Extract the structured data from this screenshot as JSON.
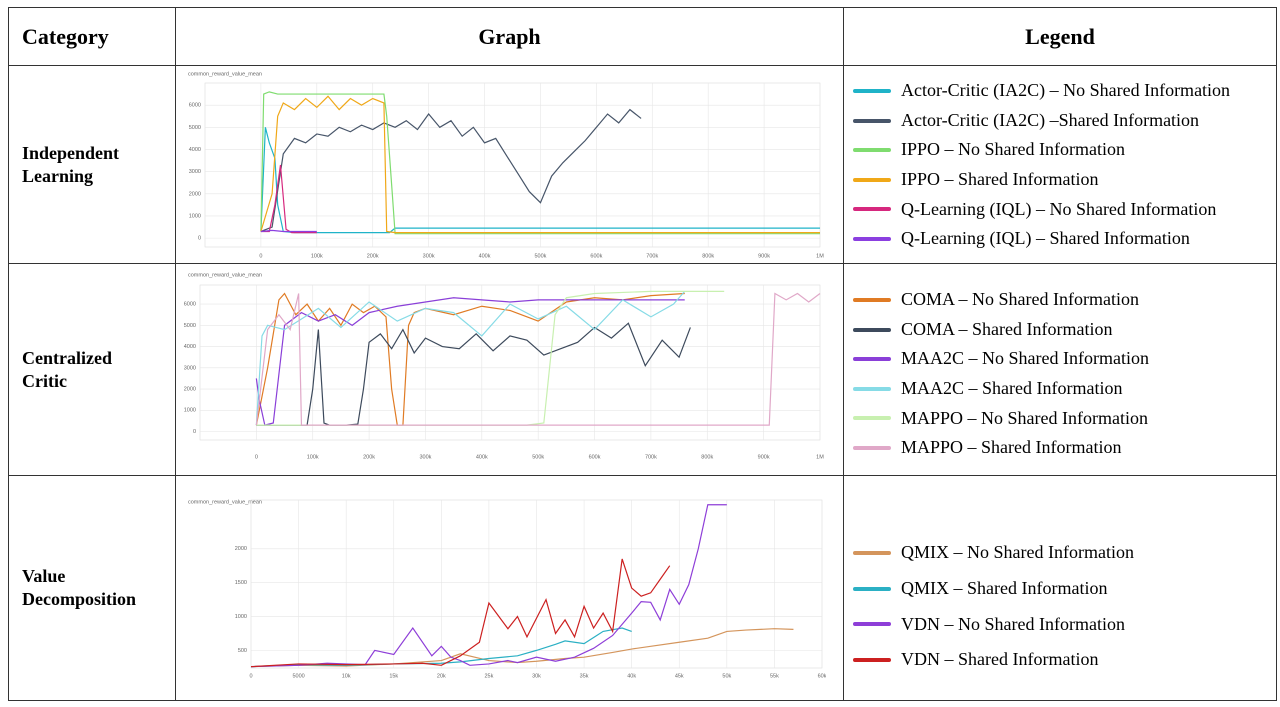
{
  "header": {
    "category": "Category",
    "graph": "Graph",
    "legend": "Legend"
  },
  "rows": [
    {
      "category": "Independent Learning",
      "chart_data": {
        "type": "line",
        "title": "common_reward_value_mean",
        "grid": true,
        "xlim": [
          -100000,
          1000000
        ],
        "ylim": [
          -400,
          7000
        ],
        "xticks": [
          0,
          {
            "value": 100000,
            "label": "100k"
          },
          {
            "value": 200000,
            "label": "200k"
          },
          {
            "value": 300000,
            "label": "300k"
          },
          {
            "value": 400000,
            "label": "400k"
          },
          {
            "value": 500000,
            "label": "500k"
          },
          {
            "value": 600000,
            "label": "600k"
          },
          {
            "value": 700000,
            "label": "700k"
          },
          {
            "value": 800000,
            "label": "800k"
          },
          {
            "value": 900000,
            "label": "900k"
          },
          {
            "value": 1000000,
            "label": "1M"
          }
        ],
        "yticks": [
          0,
          1000,
          2000,
          3000,
          4000,
          5000,
          6000
        ],
        "series": [
          {
            "name": "Actor-Critic (IA2C) – No Shared Information",
            "color": "#1fb3c8",
            "x": [
              0,
              8000,
              15000,
              25000,
              30000,
              40000,
              60000,
              230000,
              240000,
              1000000
            ],
            "values": [
              300,
              5000,
              4300,
              3600,
              1500,
              300,
              250,
              250,
              450,
              450
            ]
          },
          {
            "name": "Actor-Critic (IA2C) –Shared Information",
            "color": "#475569",
            "x": [
              0,
              20000,
              40000,
              60000,
              80000,
              100000,
              120000,
              140000,
              160000,
              180000,
              200000,
              220000,
              240000,
              260000,
              280000,
              300000,
              320000,
              340000,
              360000,
              380000,
              400000,
              420000,
              440000,
              460000,
              480000,
              500000,
              520000,
              540000,
              560000,
              580000,
              600000,
              620000,
              640000,
              660000,
              680000
            ],
            "values": [
              300,
              500,
              3800,
              4500,
              4300,
              4700,
              4600,
              5000,
              4800,
              5100,
              4900,
              5200,
              5000,
              5300,
              4900,
              5600,
              5000,
              5300,
              4600,
              5000,
              4300,
              4500,
              3700,
              2900,
              2100,
              1600,
              2800,
              3400,
              3900,
              4400,
              5000,
              5600,
              5200,
              5800,
              5400
            ]
          },
          {
            "name": "IPPO – No Shared Information",
            "color": "#7fdc6f",
            "x": [
              0,
              5000,
              15000,
              30000,
              100000,
              220000,
              225000,
              235000,
              240000,
              1000000
            ],
            "values": [
              300,
              6500,
              6600,
              6500,
              6500,
              6500,
              5500,
              2000,
              200,
              200
            ]
          },
          {
            "name": "IPPO – Shared Information",
            "color": "#f0a818",
            "x": [
              0,
              20000,
              30000,
              40000,
              60000,
              80000,
              100000,
              120000,
              140000,
              160000,
              180000,
              200000,
              220000,
              225000,
              240000,
              500000,
              1000000
            ],
            "values": [
              300,
              2000,
              5500,
              6100,
              5800,
              6300,
              5900,
              6400,
              5800,
              6300,
              6000,
              6300,
              6100,
              300,
              250,
              250,
              250
            ]
          },
          {
            "name": "Q-Learning (IQL) – No Shared Information",
            "color": "#d6287e",
            "x": [
              0,
              15000,
              25000,
              35000,
              45000,
              55000,
              100000
            ],
            "values": [
              300,
              300,
              1500,
              3300,
              400,
              250,
              250
            ]
          },
          {
            "name": "Q-Learning (IQL) – Shared Information",
            "color": "#8b3fe0",
            "x": [
              0,
              20000,
              40000,
              100000
            ],
            "values": [
              300,
              350,
              300,
              300
            ]
          }
        ]
      }
    },
    {
      "category": "Centralized Critic",
      "chart_data": {
        "type": "line",
        "title": "common_reward_value_mean",
        "grid": true,
        "xlim": [
          -100000,
          1000000
        ],
        "ylim": [
          -400,
          6900
        ],
        "xticks": [
          0,
          {
            "value": 100000,
            "label": "100k"
          },
          {
            "value": 200000,
            "label": "200k"
          },
          {
            "value": 300000,
            "label": "300k"
          },
          {
            "value": 400000,
            "label": "400k"
          },
          {
            "value": 500000,
            "label": "500k"
          },
          {
            "value": 600000,
            "label": "600k"
          },
          {
            "value": 700000,
            "label": "700k"
          },
          {
            "value": 800000,
            "label": "800k"
          },
          {
            "value": 900000,
            "label": "900k"
          },
          {
            "value": 1000000,
            "label": "1M"
          }
        ],
        "yticks": [
          0,
          1000,
          2000,
          3000,
          4000,
          5000,
          6000
        ],
        "series": [
          {
            "name": "COMA – No Shared Information",
            "color": "#e07b24",
            "x": [
              0,
              20000,
              40000,
              50000,
              70000,
              90000,
              110000,
              130000,
              150000,
              170000,
              190000,
              210000,
              230000,
              240000,
              250000,
              260000,
              270000,
              280000,
              300000,
              350000,
              400000,
              450000,
              500000,
              550000,
              600000,
              650000,
              700000,
              760000
            ],
            "values": [
              300,
              3000,
              6200,
              6500,
              5500,
              6000,
              5200,
              5800,
              5000,
              6000,
              5600,
              5900,
              5400,
              2000,
              300,
              300,
              5000,
              5600,
              5800,
              5500,
              5900,
              5700,
              5200,
              6100,
              6300,
              6200,
              6400,
              6500
            ]
          },
          {
            "name": "COMA – Shared Information",
            "color": "#3d4a5c",
            "x": [
              0,
              90000,
              100000,
              110000,
              120000,
              130000,
              160000,
              180000,
              190000,
              200000,
              220000,
              240000,
              260000,
              280000,
              300000,
              330000,
              360000,
              390000,
              420000,
              450000,
              480000,
              510000,
              540000,
              570000,
              600000,
              630000,
              660000,
              690000,
              720000,
              750000,
              770000
            ],
            "values": [
              300,
              300,
              2000,
              4800,
              400,
              300,
              300,
              350,
              2000,
              4200,
              4600,
              3900,
              4800,
              3700,
              4400,
              4000,
              3900,
              4600,
              3800,
              4500,
              4300,
              3600,
              3900,
              4200,
              4900,
              4400,
              5100,
              3100,
              4300,
              3500,
              4900
            ]
          },
          {
            "name": "MAA2C – No Shared Information",
            "color": "#8a3fd8",
            "x": [
              0,
              5000,
              15000,
              30000,
              50000,
              80000,
              110000,
              140000,
              170000,
              200000,
              250000,
              300000,
              350000,
              400000,
              450000,
              500000,
              550000,
              600000,
              650000,
              700000,
              760000
            ],
            "values": [
              2500,
              1500,
              300,
              400,
              5000,
              5600,
              5200,
              5500,
              5000,
              5600,
              5900,
              6100,
              6300,
              6200,
              6100,
              6200,
              6200,
              6200,
              6200,
              6200,
              6200
            ]
          },
          {
            "name": "MAA2C – Shared Information",
            "color": "#86dbe6",
            "x": [
              0,
              10000,
              20000,
              50000,
              80000,
              110000,
              150000,
              200000,
              250000,
              300000,
              350000,
              400000,
              450000,
              500000,
              550000,
              600000,
              650000,
              700000,
              740000,
              760000
            ],
            "values": [
              300,
              4500,
              5000,
              4800,
              5300,
              5800,
              4900,
              6100,
              5200,
              5800,
              5600,
              4500,
              6000,
              5300,
              5900,
              4800,
              6200,
              5400,
              6000,
              6600
            ]
          },
          {
            "name": "MAPPO – No Shared Information",
            "color": "#c8f0b0",
            "x": [
              0,
              480000,
              510000,
              530000,
              550000,
              600000,
              700000,
              830000
            ],
            "values": [
              300,
              300,
              400,
              5500,
              6300,
              6500,
              6600,
              6600
            ]
          },
          {
            "name": "MAPPO – Shared Information",
            "color": "#e0a8c8",
            "x": [
              0,
              20000,
              40000,
              60000,
              75000,
              80000,
              910000,
              920000,
              940000,
              960000,
              980000,
              1000000
            ],
            "values": [
              300,
              4800,
              5500,
              4800,
              6500,
              300,
              300,
              6500,
              6200,
              6500,
              6100,
              6500
            ]
          }
        ]
      }
    },
    {
      "category": "Value Decomposition",
      "chart_data": {
        "type": "line",
        "title": "common_reward_value_mean",
        "grid": true,
        "xlim": [
          0,
          60000
        ],
        "ylim": [
          240,
          2720
        ],
        "xticks": [
          0,
          5000,
          {
            "value": 10000,
            "label": "10k"
          },
          {
            "value": 15000,
            "label": "15k"
          },
          {
            "value": 20000,
            "label": "20k"
          },
          {
            "value": 25000,
            "label": "25k"
          },
          {
            "value": 30000,
            "label": "30k"
          },
          {
            "value": 35000,
            "label": "35k"
          },
          {
            "value": 40000,
            "label": "40k"
          },
          {
            "value": 45000,
            "label": "45k"
          },
          {
            "value": 50000,
            "label": "50k"
          },
          {
            "value": 55000,
            "label": "55k"
          },
          {
            "value": 60000,
            "label": "60k"
          }
        ],
        "yticks": [
          500,
          1000,
          1500,
          2000
        ],
        "series": [
          {
            "name": "QMIX – No Shared Information",
            "color": "#d4955c",
            "x": [
              0,
              5000,
              10000,
              15000,
              20000,
              22000,
              25000,
              28000,
              30000,
              33000,
              35000,
              38000,
              40000,
              42000,
              45000,
              48000,
              50000,
              52000,
              55000,
              57000
            ],
            "values": [
              260,
              280,
              270,
              300,
              350,
              450,
              350,
              320,
              340,
              380,
              400,
              470,
              520,
              560,
              620,
              680,
              780,
              800,
              820,
              810
            ]
          },
          {
            "name": "QMIX – Shared Information",
            "color": "#2bb0c4",
            "x": [
              0,
              5000,
              10000,
              15000,
              20000,
              22000,
              25000,
              28000,
              30000,
              32000,
              33000,
              35000,
              37000,
              39000,
              40000
            ],
            "values": [
              260,
              290,
              280,
              300,
              310,
              330,
              380,
              420,
              500,
              590,
              640,
              600,
              780,
              830,
              780
            ]
          },
          {
            "name": "VDN – No Shared Information",
            "color": "#8e3ed8",
            "x": [
              0,
              5000,
              8000,
              10000,
              12000,
              13000,
              15000,
              17000,
              19000,
              20000,
              21000,
              22000,
              23000,
              25000,
              27000,
              28000,
              30000,
              32000,
              34000,
              36000,
              38000,
              40000,
              41000,
              42000,
              43000,
              44000,
              45000,
              46000,
              47000,
              48000,
              49000,
              50000
            ],
            "values": [
              260,
              280,
              310,
              300,
              290,
              500,
              440,
              830,
              420,
              560,
              400,
              350,
              280,
              300,
              350,
              320,
              400,
              340,
              400,
              530,
              720,
              1050,
              1220,
              1210,
              950,
              1400,
              1180,
              1470,
              2000,
              2650,
              2650,
              2650
            ]
          },
          {
            "name": "VDN – Shared Information",
            "color": "#cc2020",
            "x": [
              0,
              5000,
              10000,
              15000,
              18000,
              20000,
              22000,
              24000,
              25000,
              27000,
              28000,
              29000,
              31000,
              32000,
              33000,
              34000,
              35000,
              36000,
              37000,
              38000,
              39000,
              40000,
              41000,
              42000,
              43000,
              44000
            ],
            "values": [
              260,
              300,
              290,
              300,
              310,
              280,
              420,
              620,
              1200,
              820,
              1000,
              700,
              1250,
              750,
              950,
              700,
              1150,
              830,
              1050,
              780,
              1850,
              1420,
              1300,
              1350,
              1550,
              1750
            ]
          }
        ]
      }
    }
  ]
}
